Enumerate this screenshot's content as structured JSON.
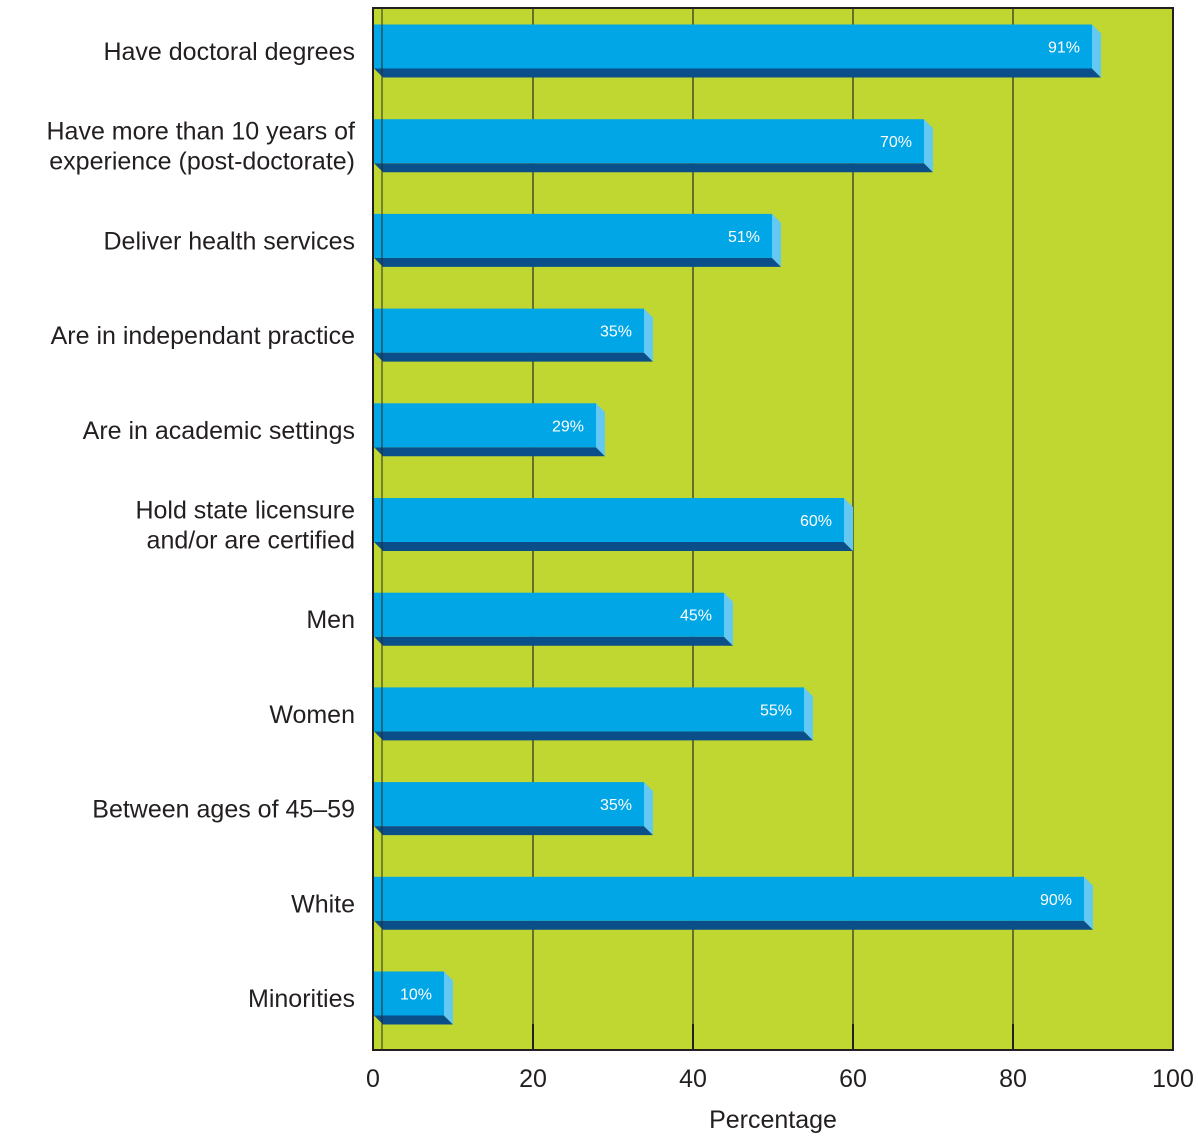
{
  "chart_data": {
    "type": "bar",
    "orientation": "horizontal",
    "categories": [
      "Have doctoral degrees",
      "Have more than 10 years of\nexperience (post-doctorate)",
      "Deliver health services",
      "Are in independant practice",
      "Are in academic settings",
      "Hold state licensure\nand/or are certified",
      "Men",
      "Women",
      "Between ages of 45–59",
      "White",
      "Minorities"
    ],
    "values": [
      91,
      70,
      51,
      35,
      29,
      60,
      45,
      55,
      35,
      90,
      10
    ],
    "value_labels": [
      "91%",
      "70%",
      "51%",
      "35%",
      "29%",
      "60%",
      "45%",
      "55%",
      "35%",
      "90%",
      "10%"
    ],
    "xlabel": "Percentage",
    "xlim": [
      0,
      100
    ],
    "xticks": [
      "0",
      "20",
      "40",
      "60",
      "80",
      "100"
    ],
    "grid": true,
    "colors": {
      "background": "#c0d731",
      "bar_face": "#00a6e6",
      "bar_bottom": "#0b4f8a",
      "bar_side": "#63c8f2",
      "grid": "#2b2b2b",
      "axis": "#231f20"
    }
  }
}
